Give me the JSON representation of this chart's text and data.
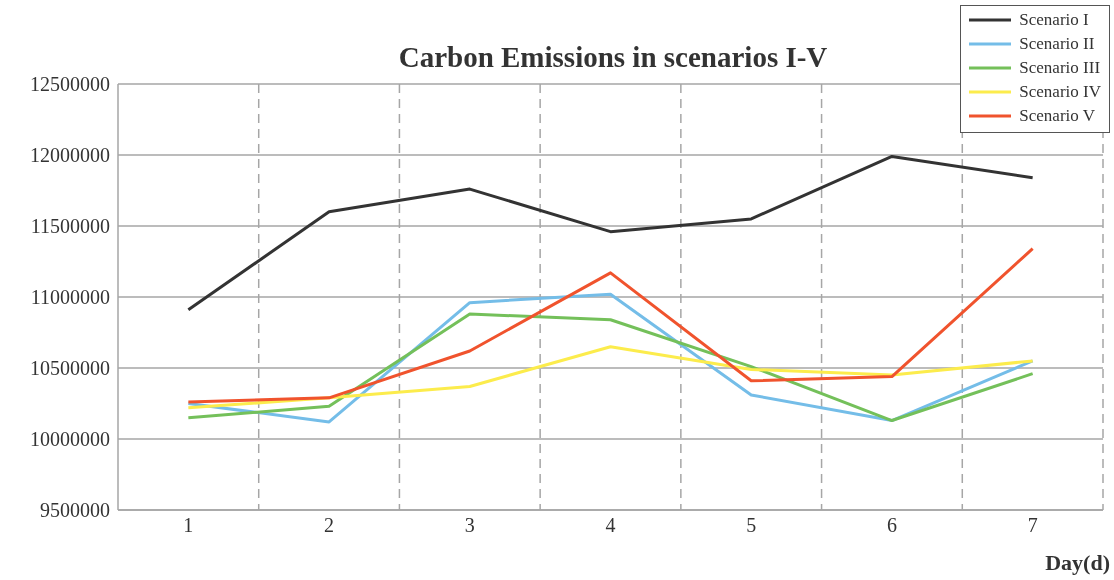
{
  "chart_data": {
    "type": "line",
    "title": "Carbon Emissions in scenarios I-V",
    "xlabel": "Day(d)",
    "categories": [
      "1",
      "2",
      "3",
      "4",
      "5",
      "6",
      "7"
    ],
    "series": [
      {
        "name": "Scenario I",
        "color": "#333333",
        "values": [
          10910000,
          11600000,
          11760000,
          11460000,
          11550000,
          11990000,
          11840000
        ]
      },
      {
        "name": "Scenario II",
        "color": "#74bde8",
        "values": [
          10250000,
          10120000,
          10960000,
          11020000,
          10310000,
          10130000,
          10550000
        ]
      },
      {
        "name": "Scenario III",
        "color": "#74c05a",
        "values": [
          10150000,
          10230000,
          10880000,
          10840000,
          10510000,
          10130000,
          10460000
        ]
      },
      {
        "name": "Scenario IV",
        "color": "#fcec4c",
        "values": [
          10220000,
          10290000,
          10370000,
          10650000,
          10490000,
          10450000,
          10550000
        ]
      },
      {
        "name": "Scenario V",
        "color": "#f0532d",
        "values": [
          10260000,
          10290000,
          10620000,
          11170000,
          10410000,
          10440000,
          11340000
        ]
      }
    ],
    "ylim": [
      9500000,
      12500000
    ],
    "yticks": [
      9500000,
      10000000,
      10500000,
      11000000,
      11500000,
      12000000,
      12500000
    ],
    "grid": true,
    "legend": "top right",
    "marker": "none",
    "line_style": "solid"
  }
}
